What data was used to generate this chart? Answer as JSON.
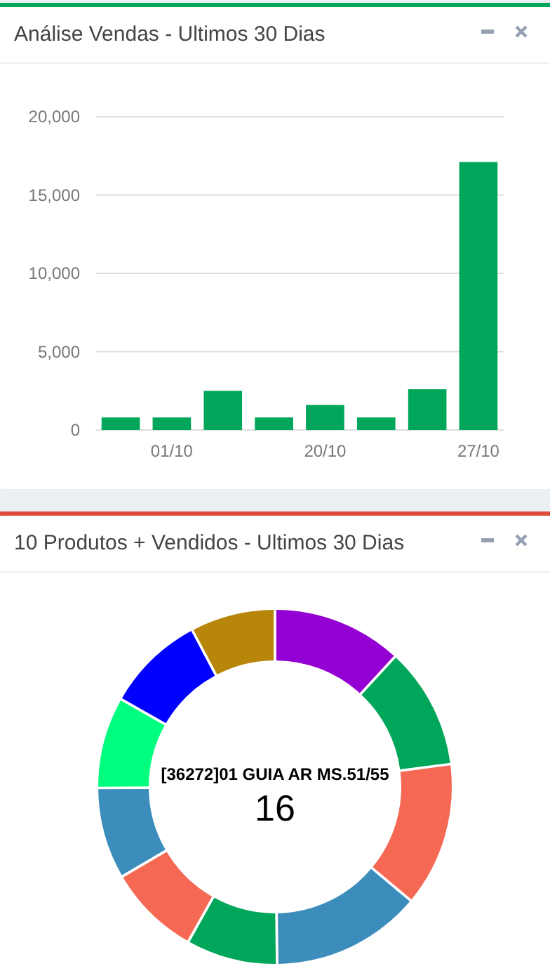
{
  "chart_data": [
    {
      "type": "bar",
      "title": "Análise Vendas - Ultimos 30 Dias",
      "categories": [
        null,
        "01/10",
        null,
        null,
        "20/10",
        null,
        null,
        "27/10"
      ],
      "values": [
        800,
        800,
        2500,
        800,
        1600,
        800,
        2600,
        17100
      ],
      "color": "#00a65a",
      "ylim": [
        0,
        20000
      ],
      "yticks": [
        {
          "value": 0,
          "label": "0"
        },
        {
          "value": 5000,
          "label": "5,000"
        },
        {
          "value": 10000,
          "label": "10,000"
        },
        {
          "value": 15000,
          "label": "15,000"
        },
        {
          "value": 20000,
          "label": "20,000"
        }
      ],
      "grid": "y"
    },
    {
      "type": "donut",
      "title": "10 Produtos + Vendidos - Ultimos 30 Dias",
      "categories": [
        null,
        null,
        null,
        null,
        null,
        null,
        null,
        null,
        null,
        null
      ],
      "values": [
        11.9,
        11.1,
        13.2,
        13.8,
        8.3,
        8.4,
        8.3,
        8.3,
        9.0,
        7.7
      ],
      "colors": [
        "#9400d3",
        "#00a65a",
        "#f56954",
        "#3c8dbc",
        "#00a65a",
        "#f56954",
        "#3c8dbc",
        "#00ff7f",
        "#0000ff",
        "#b8860b"
      ],
      "annotations": [
        "[36272]01 GUIA AR MS.51/55",
        "16"
      ]
    }
  ]
}
